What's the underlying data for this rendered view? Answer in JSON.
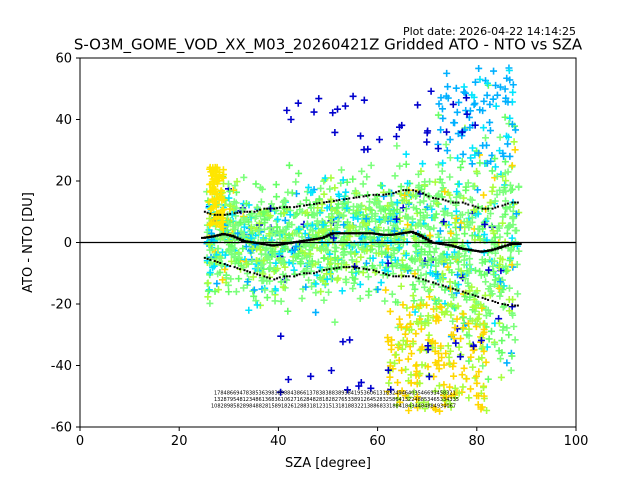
{
  "chart_data": {
    "type": "scatter",
    "title": "S-O3M_GOME_VOD_XX_M03_20260421Z Gridded ATO - NTO vs SZA",
    "plot_date": "Plot date: 2026-04-22 14:14:25",
    "xlabel": "SZA [degree]",
    "ylabel": "ATO - NTO [DU]",
    "xlim": [
      0,
      100
    ],
    "ylim": [
      -60,
      60
    ],
    "xticks": [
      0,
      20,
      40,
      60,
      80,
      100
    ],
    "yticks": [
      -60,
      -40,
      -20,
      0,
      20,
      40,
      60
    ],
    "reference_line_y": 0,
    "colors": {
      "scatter": [
        "#7CFF7C",
        "#66FF66",
        "#A8FF3E",
        "#00E5FF",
        "#00B0FF",
        "#FFD700",
        "#FFE600",
        "#0000CD"
      ],
      "stats": "#000000"
    },
    "scatter_summary": {
      "sza_range": [
        25.5,
        88.5
      ],
      "main_band": [
        -25,
        35
      ],
      "outlier_range": [
        -60,
        60
      ]
    },
    "series": [
      {
        "name": "mean",
        "x": [
          26,
          28,
          30,
          32,
          34,
          36,
          38,
          40,
          42,
          44,
          46,
          48,
          50,
          52,
          54,
          56,
          58,
          60,
          62,
          64,
          66,
          68,
          70,
          72,
          74,
          76,
          78,
          80,
          82,
          84,
          86,
          88
        ],
        "y": [
          1.5,
          2,
          2.8,
          2,
          0.5,
          0,
          -0.5,
          -1,
          -0.5,
          0,
          0.5,
          1,
          1.5,
          3,
          3,
          3,
          3,
          3,
          2.5,
          2.5,
          3,
          3.5,
          2,
          0,
          -0.5,
          -1,
          -2,
          -2.5,
          -3,
          -2.5,
          -1.5,
          -0.5
        ]
      },
      {
        "name": "mean_plus_std",
        "x": [
          26,
          28,
          30,
          32,
          34,
          36,
          38,
          40,
          42,
          44,
          46,
          48,
          50,
          52,
          54,
          56,
          58,
          60,
          62,
          64,
          66,
          68,
          70,
          72,
          74,
          76,
          78,
          80,
          82,
          84,
          86,
          88
        ],
        "y": [
          10,
          9,
          9,
          9.5,
          10,
          10,
          11,
          11,
          11.5,
          11.5,
          12,
          12.5,
          13,
          13.5,
          14,
          14.5,
          15,
          15.5,
          15.5,
          16,
          17,
          17,
          16,
          14.5,
          14,
          13,
          13,
          12,
          11,
          11,
          12,
          13
        ]
      },
      {
        "name": "mean_minus_std",
        "x": [
          26,
          28,
          30,
          32,
          34,
          36,
          38,
          40,
          42,
          44,
          46,
          48,
          50,
          52,
          54,
          56,
          58,
          60,
          62,
          64,
          66,
          68,
          70,
          72,
          74,
          76,
          78,
          80,
          82,
          84,
          86,
          88
        ],
        "y": [
          -5,
          -6,
          -7,
          -8,
          -9,
          -10,
          -11,
          -12,
          -11,
          -11,
          -10,
          -10,
          -9,
          -8.5,
          -8,
          -8,
          -8.5,
          -9,
          -10,
          -11,
          -11,
          -11,
          -12,
          -13,
          -14,
          -15,
          -16,
          -17,
          -18,
          -19,
          -20,
          -20.5
        ]
      }
    ],
    "count_annotations": {
      "row1": "1784866947838536398389884386613783838838938419536061318324946403546693458321",
      "row2": "13287954812348613683610627162848281828276533891264528325864132248853465334335",
      "row3": "10828985828984882815891826128831812315131818832213886833188418434484884934067",
      "y_rows": [
        -50.5,
        -52.5,
        -54.5
      ],
      "x_range": [
        27,
        88
      ]
    }
  }
}
